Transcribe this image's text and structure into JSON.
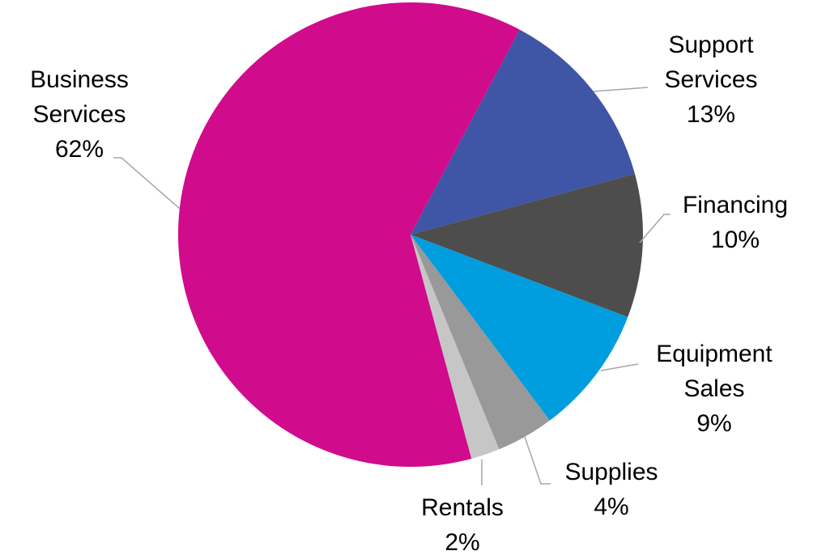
{
  "chart_data": {
    "type": "pie",
    "categories": [
      "Support Services",
      "Financing",
      "Equipment Sales",
      "Supplies",
      "Rentals",
      "Business Services"
    ],
    "values": [
      13,
      10,
      9,
      4,
      2,
      62
    ],
    "value_labels": [
      "13%",
      "10%",
      "9%",
      "4%",
      "2%",
      "62%"
    ],
    "colors": [
      "#3f55a5",
      "#4d4d4d",
      "#009ddf",
      "#999999",
      "#c6c6c6",
      "#d00b8c"
    ]
  }
}
